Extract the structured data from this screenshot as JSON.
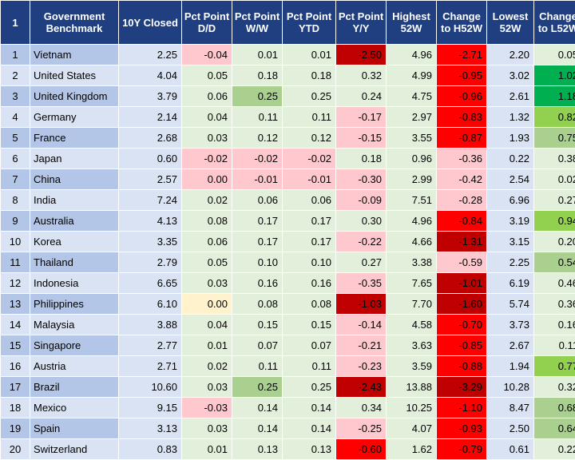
{
  "table": {
    "headers": [
      "1",
      "Government Benchmark",
      "10Y Closed",
      "Pct Point D/D",
      "Pct Point W/W",
      "Pct Point YTD",
      "Pct Point Y/Y",
      "Highest 52W",
      "Change to H52W",
      "Lowest 52W",
      "Change to L52W"
    ],
    "rows": [
      [
        "1",
        "Vietnam",
        "2.25",
        "-0.04",
        "0.01",
        "0.01",
        "-2.50",
        "4.96",
        "-2.71",
        "2.20",
        "0.05"
      ],
      [
        "2",
        "United States",
        "4.04",
        "0.05",
        "0.18",
        "0.18",
        "0.32",
        "4.99",
        "-0.95",
        "3.02",
        "1.02"
      ],
      [
        "3",
        "United Kingdom",
        "3.79",
        "0.06",
        "0.25",
        "0.25",
        "0.24",
        "4.75",
        "-0.96",
        "2.61",
        "1.18"
      ],
      [
        "4",
        "Germany",
        "2.14",
        "0.04",
        "0.11",
        "0.11",
        "-0.17",
        "2.97",
        "-0.83",
        "1.32",
        "0.82"
      ],
      [
        "5",
        "France",
        "2.68",
        "0.03",
        "0.12",
        "0.12",
        "-0.15",
        "3.55",
        "-0.87",
        "1.93",
        "0.75"
      ],
      [
        "6",
        "Japan",
        "0.60",
        "-0.02",
        "-0.02",
        "-0.02",
        "0.18",
        "0.96",
        "-0.36",
        "0.22",
        "0.38"
      ],
      [
        "7",
        "China",
        "2.57",
        "0.00",
        "-0.01",
        "-0.01",
        "-0.30",
        "2.99",
        "-0.42",
        "2.54",
        "0.02"
      ],
      [
        "8",
        "India",
        "7.24",
        "0.02",
        "0.06",
        "0.06",
        "-0.09",
        "7.51",
        "-0.28",
        "6.96",
        "0.27"
      ],
      [
        "9",
        "Australia",
        "4.13",
        "0.08",
        "0.17",
        "0.17",
        "0.30",
        "4.96",
        "-0.84",
        "3.19",
        "0.94"
      ],
      [
        "10",
        "Korea",
        "3.35",
        "0.06",
        "0.17",
        "0.17",
        "-0.22",
        "4.66",
        "-1.31",
        "3.15",
        "0.20"
      ],
      [
        "11",
        "Thailand",
        "2.79",
        "0.05",
        "0.10",
        "0.10",
        "0.27",
        "3.38",
        "-0.59",
        "2.25",
        "0.54"
      ],
      [
        "12",
        "Indonesia",
        "6.65",
        "0.03",
        "0.16",
        "0.16",
        "-0.35",
        "7.65",
        "-1.01",
        "6.19",
        "0.46"
      ],
      [
        "13",
        "Philippines",
        "6.10",
        "0.00",
        "0.08",
        "0.08",
        "-1.03",
        "7.70",
        "-1.60",
        "5.74",
        "0.36"
      ],
      [
        "14",
        "Malaysia",
        "3.88",
        "0.04",
        "0.15",
        "0.15",
        "-0.14",
        "4.58",
        "-0.70",
        "3.73",
        "0.16"
      ],
      [
        "15",
        "Singapore",
        "2.77",
        "0.01",
        "0.07",
        "0.07",
        "-0.21",
        "3.63",
        "-0.85",
        "2.67",
        "0.11"
      ],
      [
        "16",
        "Austria",
        "2.71",
        "0.02",
        "0.11",
        "0.11",
        "-0.23",
        "3.59",
        "-0.88",
        "1.94",
        "0.77"
      ],
      [
        "17",
        "Brazil",
        "10.60",
        "0.03",
        "0.25",
        "0.25",
        "-2.43",
        "13.88",
        "-3.29",
        "10.28",
        "0.32"
      ],
      [
        "18",
        "Mexico",
        "9.15",
        "-0.03",
        "0.14",
        "0.14",
        "0.34",
        "10.25",
        "-1.10",
        "8.47",
        "0.68"
      ],
      [
        "19",
        "Spain",
        "3.13",
        "0.03",
        "0.14",
        "0.14",
        "-0.25",
        "4.07",
        "-0.93",
        "2.50",
        "0.64"
      ],
      [
        "20",
        "Switzerland",
        "0.83",
        "0.01",
        "0.13",
        "0.13",
        "-0.60",
        "1.62",
        "-0.79",
        "0.61",
        "0.22"
      ]
    ],
    "cell_colors": [
      [
        "#b4c6e7",
        "#b4c6e7",
        "#dae3f3",
        "#ffc7ce",
        "#e2efda",
        "#e2efda",
        "#c00000",
        "#e2efda",
        "#ff0000",
        "#dae3f3",
        "#e2efda"
      ],
      [
        "#dae3f3",
        "#dae3f3",
        "#dae3f3",
        "#e2efda",
        "#e2efda",
        "#e2efda",
        "#e2efda",
        "#e2efda",
        "#ff0000",
        "#dae3f3",
        "#00b050"
      ],
      [
        "#b4c6e7",
        "#b4c6e7",
        "#dae3f3",
        "#e2efda",
        "#a9d08e",
        "#e2efda",
        "#e2efda",
        "#e2efda",
        "#ff0000",
        "#dae3f3",
        "#00b050"
      ],
      [
        "#dae3f3",
        "#dae3f3",
        "#dae3f3",
        "#e2efda",
        "#e2efda",
        "#e2efda",
        "#ffc7ce",
        "#e2efda",
        "#ff0000",
        "#dae3f3",
        "#92d050"
      ],
      [
        "#b4c6e7",
        "#b4c6e7",
        "#dae3f3",
        "#e2efda",
        "#e2efda",
        "#e2efda",
        "#ffc7ce",
        "#e2efda",
        "#ff0000",
        "#dae3f3",
        "#a9d08e"
      ],
      [
        "#dae3f3",
        "#dae3f3",
        "#dae3f3",
        "#ffc7ce",
        "#ffc7ce",
        "#ffc7ce",
        "#e2efda",
        "#e2efda",
        "#ffc7ce",
        "#dae3f3",
        "#e2efda"
      ],
      [
        "#b4c6e7",
        "#b4c6e7",
        "#dae3f3",
        "#ffc7ce",
        "#ffc7ce",
        "#ffc7ce",
        "#ffc7ce",
        "#e2efda",
        "#ffc7ce",
        "#dae3f3",
        "#e2efda"
      ],
      [
        "#dae3f3",
        "#dae3f3",
        "#dae3f3",
        "#e2efda",
        "#e2efda",
        "#e2efda",
        "#ffc7ce",
        "#e2efda",
        "#ffc7ce",
        "#dae3f3",
        "#e2efda"
      ],
      [
        "#b4c6e7",
        "#b4c6e7",
        "#dae3f3",
        "#e2efda",
        "#e2efda",
        "#e2efda",
        "#e2efda",
        "#e2efda",
        "#ff0000",
        "#dae3f3",
        "#92d050"
      ],
      [
        "#dae3f3",
        "#dae3f3",
        "#dae3f3",
        "#e2efda",
        "#e2efda",
        "#e2efda",
        "#ffc7ce",
        "#e2efda",
        "#c00000",
        "#dae3f3",
        "#e2efda"
      ],
      [
        "#b4c6e7",
        "#b4c6e7",
        "#dae3f3",
        "#e2efda",
        "#e2efda",
        "#e2efda",
        "#e2efda",
        "#e2efda",
        "#ffc7ce",
        "#dae3f3",
        "#a9d08e"
      ],
      [
        "#dae3f3",
        "#dae3f3",
        "#dae3f3",
        "#e2efda",
        "#e2efda",
        "#e2efda",
        "#ffc7ce",
        "#e2efda",
        "#c00000",
        "#dae3f3",
        "#e2efda"
      ],
      [
        "#b4c6e7",
        "#b4c6e7",
        "#dae3f3",
        "#fff2cc",
        "#e2efda",
        "#e2efda",
        "#c00000",
        "#e2efda",
        "#c00000",
        "#dae3f3",
        "#e2efda"
      ],
      [
        "#dae3f3",
        "#dae3f3",
        "#dae3f3",
        "#e2efda",
        "#e2efda",
        "#e2efda",
        "#ffc7ce",
        "#e2efda",
        "#ff0000",
        "#dae3f3",
        "#e2efda"
      ],
      [
        "#b4c6e7",
        "#b4c6e7",
        "#dae3f3",
        "#e2efda",
        "#e2efda",
        "#e2efda",
        "#ffc7ce",
        "#e2efda",
        "#ff0000",
        "#dae3f3",
        "#e2efda"
      ],
      [
        "#dae3f3",
        "#dae3f3",
        "#dae3f3",
        "#e2efda",
        "#e2efda",
        "#e2efda",
        "#ffc7ce",
        "#e2efda",
        "#ff0000",
        "#dae3f3",
        "#92d050"
      ],
      [
        "#b4c6e7",
        "#b4c6e7",
        "#dae3f3",
        "#e2efda",
        "#a9d08e",
        "#e2efda",
        "#c00000",
        "#e2efda",
        "#c00000",
        "#dae3f3",
        "#e2efda"
      ],
      [
        "#dae3f3",
        "#dae3f3",
        "#dae3f3",
        "#ffc7ce",
        "#e2efda",
        "#e2efda",
        "#e2efda",
        "#e2efda",
        "#ff0000",
        "#dae3f3",
        "#a9d08e"
      ],
      [
        "#b4c6e7",
        "#b4c6e7",
        "#dae3f3",
        "#e2efda",
        "#e2efda",
        "#e2efda",
        "#ffc7ce",
        "#e2efda",
        "#ff0000",
        "#dae3f3",
        "#a9d08e"
      ],
      [
        "#dae3f3",
        "#dae3f3",
        "#dae3f3",
        "#e2efda",
        "#e2efda",
        "#e2efda",
        "#ff0000",
        "#e2efda",
        "#ff0000",
        "#dae3f3",
        "#e2efda"
      ]
    ]
  }
}
